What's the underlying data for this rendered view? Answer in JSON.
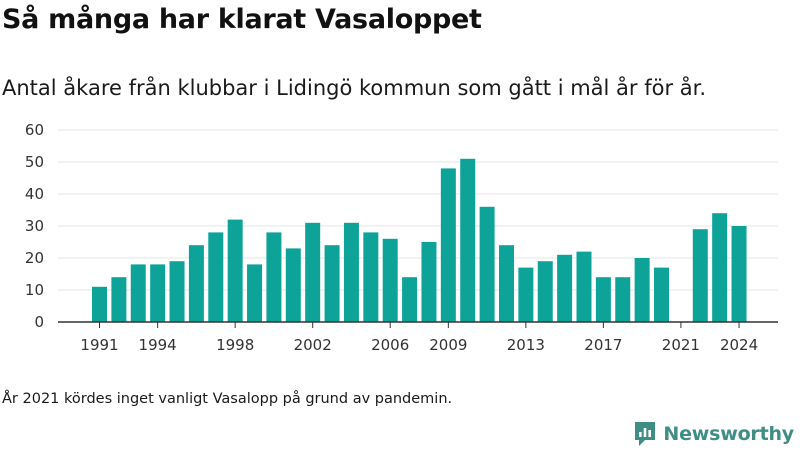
{
  "header": {
    "title": "Så många har klarat Vasaloppet",
    "subtitle": "Antal åkare från klubbar i Lidingö kommun som gått i mål år för år."
  },
  "footnote": "År 2021 kördes inget vanligt Vasalopp på grund av pandemin.",
  "brand": {
    "name": "Newsworthy",
    "icon": "newsworthy-logo-icon",
    "color": "#3f8e85"
  },
  "colors": {
    "bar": "#0ea399",
    "grid": "#e6e6e6",
    "axis": "#333333"
  },
  "chart_data": {
    "type": "bar",
    "title": "Så många har klarat Vasaloppet",
    "subtitle": "Antal åkare från klubbar i Lidingö kommun som gått i mål år för år.",
    "xlabel": "",
    "ylabel": "",
    "ylim": [
      0,
      60
    ],
    "yticks": [
      0,
      10,
      20,
      30,
      40,
      50,
      60
    ],
    "xticks": [
      1991,
      1994,
      1998,
      2002,
      2006,
      2009,
      2013,
      2017,
      2021,
      2024
    ],
    "grid": true,
    "categories": [
      1991,
      1992,
      1993,
      1994,
      1995,
      1996,
      1997,
      1998,
      1999,
      2000,
      2001,
      2002,
      2003,
      2004,
      2005,
      2006,
      2007,
      2008,
      2009,
      2010,
      2011,
      2012,
      2013,
      2014,
      2015,
      2016,
      2017,
      2018,
      2019,
      2020,
      2021,
      2022,
      2023,
      2024
    ],
    "values": [
      11,
      14,
      18,
      18,
      19,
      24,
      28,
      32,
      18,
      28,
      23,
      31,
      24,
      31,
      28,
      26,
      14,
      25,
      48,
      51,
      36,
      24,
      17,
      19,
      21,
      22,
      14,
      14,
      20,
      17,
      0,
      29,
      34,
      30
    ]
  }
}
